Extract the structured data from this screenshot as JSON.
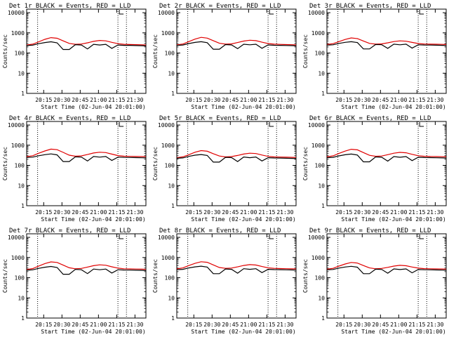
{
  "figure": {
    "ylabel": "Counts/sec",
    "xlabel": "Start Time (02-Jun-04 20:01:00)",
    "colors": {
      "events": "#000000",
      "lld": "#e00000",
      "axis": "#000000"
    }
  },
  "chart_data": [
    {
      "type": "line",
      "title": "Det 1r BLACK = Events, RED = LLD",
      "xlabel": "Start Time (02-Jun-04 20:01:00)",
      "ylabel": "Counts/sec",
      "y_scale": "log",
      "ylim": [
        1,
        15000
      ],
      "xlim": [
        "20:01",
        "21:39"
      ],
      "x_ticks": [
        "20:15",
        "20:30",
        "20:45",
        "21:00",
        "21:15",
        "21:30"
      ],
      "y_ticks": [
        "1",
        "10",
        "100",
        "1000",
        "10000"
      ],
      "vlines": [
        "20:10",
        "21:16",
        "21:23"
      ],
      "x": [
        "20:01",
        "20:06",
        "20:11",
        "20:16",
        "20:21",
        "20:26",
        "20:31",
        "20:36",
        "20:41",
        "20:46",
        "20:51",
        "20:56",
        "21:01",
        "21:06",
        "21:11",
        "21:16",
        "21:21",
        "21:26",
        "21:31",
        "21:36",
        "21:39"
      ],
      "series": [
        {
          "name": "LLD",
          "color": "#e00000",
          "values": [
            250,
            275,
            360,
            480,
            580,
            540,
            400,
            300,
            270,
            280,
            320,
            380,
            420,
            400,
            340,
            290,
            270,
            265,
            260,
            255,
            250
          ]
        },
        {
          "name": "Events",
          "color": "#000000",
          "values": [
            235,
            245,
            290,
            330,
            360,
            320,
            150,
            150,
            260,
            250,
            160,
            270,
            250,
            270,
            170,
            250,
            240,
            240,
            235,
            230,
            225
          ]
        }
      ]
    },
    {
      "type": "line",
      "title": "Det 2r BLACK = Events, RED = LLD",
      "xlabel": "Start Time (02-Jun-04 20:01:00)",
      "ylabel": "Counts/sec",
      "y_scale": "log",
      "ylim": [
        1,
        15000
      ],
      "xlim": [
        "20:01",
        "21:39"
      ],
      "x_ticks": [
        "20:15",
        "20:30",
        "20:45",
        "21:00",
        "21:15",
        "21:30"
      ],
      "y_ticks": [
        "1",
        "10",
        "100",
        "1000",
        "10000"
      ],
      "vlines": [
        "20:10",
        "21:16",
        "21:23"
      ],
      "x": [
        "20:01",
        "20:06",
        "20:11",
        "20:16",
        "20:21",
        "20:26",
        "20:31",
        "20:36",
        "20:41",
        "20:46",
        "20:51",
        "20:56",
        "21:01",
        "21:06",
        "21:11",
        "21:16",
        "21:21",
        "21:26",
        "21:31",
        "21:36",
        "21:39"
      ],
      "series": [
        {
          "name": "LLD",
          "color": "#e00000",
          "values": [
            255,
            280,
            370,
            490,
            600,
            550,
            410,
            305,
            275,
            285,
            330,
            390,
            430,
            410,
            345,
            295,
            275,
            268,
            262,
            258,
            252
          ]
        },
        {
          "name": "Events",
          "color": "#000000",
          "values": [
            240,
            250,
            295,
            335,
            365,
            325,
            155,
            155,
            262,
            252,
            165,
            272,
            255,
            272,
            172,
            252,
            242,
            240,
            236,
            232,
            228
          ]
        }
      ]
    },
    {
      "type": "line",
      "title": "Det 3r BLACK = Events, RED = LLD",
      "xlabel": "Start Time (02-Jun-04 20:01:00)",
      "ylabel": "Counts/sec",
      "y_scale": "log",
      "ylim": [
        1,
        15000
      ],
      "xlim": [
        "20:01",
        "21:39"
      ],
      "x_ticks": [
        "20:15",
        "20:30",
        "20:45",
        "21:00",
        "21:15",
        "21:30"
      ],
      "y_ticks": [
        "1",
        "10",
        "100",
        "1000",
        "10000"
      ],
      "vlines": [
        "20:10",
        "21:16",
        "21:23"
      ],
      "x": [
        "20:01",
        "20:06",
        "20:11",
        "20:16",
        "20:21",
        "20:26",
        "20:31",
        "20:36",
        "20:41",
        "20:46",
        "20:51",
        "20:56",
        "21:01",
        "21:06",
        "21:11",
        "21:16",
        "21:21",
        "21:26",
        "21:31",
        "21:36",
        "21:39"
      ],
      "series": [
        {
          "name": "LLD",
          "color": "#e00000",
          "values": [
            265,
            290,
            370,
            470,
            560,
            520,
            395,
            300,
            275,
            285,
            320,
            370,
            400,
            385,
            335,
            295,
            280,
            275,
            272,
            268,
            265
          ]
        },
        {
          "name": "Events",
          "color": "#000000",
          "values": [
            245,
            255,
            300,
            340,
            365,
            330,
            160,
            160,
            265,
            258,
            170,
            275,
            255,
            275,
            175,
            255,
            250,
            248,
            244,
            240,
            236
          ]
        }
      ]
    },
    {
      "type": "line",
      "title": "Det 4r BLACK = Events, RED = LLD",
      "xlabel": "Start Time (02-Jun-04 20:01:00)",
      "ylabel": "Counts/sec",
      "y_scale": "log",
      "ylim": [
        1,
        15000
      ],
      "xlim": [
        "20:01",
        "21:39"
      ],
      "x_ticks": [
        "20:15",
        "20:30",
        "20:45",
        "21:00",
        "21:15",
        "21:30"
      ],
      "y_ticks": [
        "1",
        "10",
        "100",
        "1000",
        "10000"
      ],
      "vlines": [
        "20:10",
        "21:16",
        "21:23"
      ],
      "x": [
        "20:01",
        "20:06",
        "20:11",
        "20:16",
        "20:21",
        "20:26",
        "20:31",
        "20:36",
        "20:41",
        "20:46",
        "20:51",
        "20:56",
        "21:01",
        "21:06",
        "21:11",
        "21:16",
        "21:21",
        "21:26",
        "21:31",
        "21:36",
        "21:39"
      ],
      "series": [
        {
          "name": "LLD",
          "color": "#e00000",
          "values": [
            270,
            300,
            400,
            520,
            640,
            600,
            440,
            320,
            285,
            295,
            345,
            410,
            450,
            430,
            360,
            305,
            285,
            280,
            275,
            272,
            268
          ]
        },
        {
          "name": "Events",
          "color": "#000000",
          "values": [
            245,
            255,
            300,
            340,
            370,
            330,
            155,
            155,
            265,
            255,
            165,
            275,
            255,
            275,
            175,
            255,
            248,
            246,
            242,
            238,
            234
          ]
        }
      ]
    },
    {
      "type": "line",
      "title": "Det 5r BLACK = Events, RED = LLD",
      "xlabel": "Start Time (02-Jun-04 20:01:00)",
      "ylabel": "Counts/sec",
      "y_scale": "log",
      "ylim": [
        1,
        15000
      ],
      "xlim": [
        "20:01",
        "21:39"
      ],
      "x_ticks": [
        "20:15",
        "20:30",
        "20:45",
        "21:00",
        "21:15",
        "21:30"
      ],
      "y_ticks": [
        "1",
        "10",
        "100",
        "1000",
        "10000"
      ],
      "vlines": [
        "20:10",
        "21:16",
        "21:23"
      ],
      "x": [
        "20:01",
        "20:06",
        "20:11",
        "20:16",
        "20:21",
        "20:26",
        "20:31",
        "20:36",
        "20:41",
        "20:46",
        "20:51",
        "20:56",
        "21:01",
        "21:06",
        "21:11",
        "21:16",
        "21:21",
        "21:26",
        "21:31",
        "21:36",
        "21:39"
      ],
      "series": [
        {
          "name": "LLD",
          "color": "#e00000",
          "values": [
            240,
            265,
            340,
            450,
            540,
            500,
            380,
            290,
            262,
            272,
            310,
            365,
            400,
            385,
            325,
            280,
            262,
            258,
            254,
            250,
            245
          ]
        },
        {
          "name": "Events",
          "color": "#000000",
          "values": [
            225,
            235,
            280,
            320,
            345,
            310,
            145,
            145,
            250,
            242,
            155,
            260,
            240,
            260,
            165,
            240,
            232,
            230,
            226,
            222,
            218
          ]
        }
      ]
    },
    {
      "type": "line",
      "title": "Det 6r BLACK = Events, RED = LLD",
      "xlabel": "Start Time (02-Jun-04 20:01:00)",
      "ylabel": "Counts/sec",
      "y_scale": "log",
      "ylim": [
        1,
        15000
      ],
      "xlim": [
        "20:01",
        "21:39"
      ],
      "x_ticks": [
        "20:15",
        "20:30",
        "20:45",
        "21:00",
        "21:15",
        "21:30"
      ],
      "y_ticks": [
        "1",
        "10",
        "100",
        "1000",
        "10000"
      ],
      "vlines": [
        "20:10",
        "21:16",
        "21:23"
      ],
      "x": [
        "20:01",
        "20:06",
        "20:11",
        "20:16",
        "20:21",
        "20:26",
        "20:31",
        "20:36",
        "20:41",
        "20:46",
        "20:51",
        "20:56",
        "21:01",
        "21:06",
        "21:11",
        "21:16",
        "21:21",
        "21:26",
        "21:31",
        "21:36",
        "21:39"
      ],
      "series": [
        {
          "name": "LLD",
          "color": "#e00000",
          "values": [
            265,
            295,
            395,
            510,
            630,
            590,
            430,
            315,
            282,
            292,
            340,
            400,
            440,
            420,
            352,
            300,
            282,
            276,
            272,
            268,
            264
          ]
        },
        {
          "name": "Events",
          "color": "#000000",
          "values": [
            240,
            250,
            295,
            335,
            365,
            325,
            150,
            150,
            262,
            252,
            162,
            272,
            252,
            272,
            172,
            252,
            244,
            242,
            238,
            234,
            230
          ]
        }
      ]
    },
    {
      "type": "line",
      "title": "Det 7r BLACK = Events, RED = LLD",
      "xlabel": "Start Time (02-Jun-04 20:01:00)",
      "ylabel": "Counts/sec",
      "y_scale": "log",
      "ylim": [
        1,
        15000
      ],
      "xlim": [
        "20:01",
        "21:39"
      ],
      "x_ticks": [
        "20:15",
        "20:30",
        "20:45",
        "21:00",
        "21:15",
        "21:30"
      ],
      "y_ticks": [
        "1",
        "10",
        "100",
        "1000",
        "10000"
      ],
      "vlines": [
        "20:10",
        "21:16",
        "21:23"
      ],
      "x": [
        "20:01",
        "20:06",
        "20:11",
        "20:16",
        "20:21",
        "20:26",
        "20:31",
        "20:36",
        "20:41",
        "20:46",
        "20:51",
        "20:56",
        "21:01",
        "21:06",
        "21:11",
        "21:16",
        "21:21",
        "21:26",
        "21:31",
        "21:36",
        "21:39"
      ],
      "series": [
        {
          "name": "LLD",
          "color": "#e00000",
          "values": [
            255,
            285,
            380,
            500,
            610,
            570,
            420,
            310,
            278,
            288,
            335,
            395,
            435,
            415,
            348,
            298,
            278,
            272,
            268,
            264,
            258
          ]
        },
        {
          "name": "Events",
          "color": "#000000",
          "values": [
            235,
            245,
            290,
            330,
            360,
            320,
            148,
            148,
            258,
            248,
            160,
            268,
            248,
            268,
            170,
            248,
            240,
            238,
            234,
            230,
            226
          ]
        }
      ]
    },
    {
      "type": "line",
      "title": "Det 8r BLACK = Events, RED = LLD",
      "xlabel": "Start Time (02-Jun-04 20:01:00)",
      "ylabel": "Counts/sec",
      "y_scale": "log",
      "ylim": [
        1,
        15000
      ],
      "xlim": [
        "20:01",
        "21:39"
      ],
      "x_ticks": [
        "20:15",
        "20:30",
        "20:45",
        "21:00",
        "21:15",
        "21:30"
      ],
      "y_ticks": [
        "1",
        "10",
        "100",
        "1000",
        "10000"
      ],
      "vlines": [
        "20:10",
        "21:16",
        "21:23"
      ],
      "x": [
        "20:01",
        "20:06",
        "20:11",
        "20:16",
        "20:21",
        "20:26",
        "20:31",
        "20:36",
        "20:41",
        "20:46",
        "20:51",
        "20:56",
        "21:01",
        "21:06",
        "21:11",
        "21:16",
        "21:21",
        "21:26",
        "21:31",
        "21:36",
        "21:39"
      ],
      "series": [
        {
          "name": "LLD",
          "color": "#e00000",
          "values": [
            275,
            305,
            400,
            515,
            620,
            580,
            430,
            320,
            290,
            300,
            345,
            405,
            445,
            425,
            358,
            308,
            290,
            284,
            280,
            276,
            272
          ]
        },
        {
          "name": "Events",
          "color": "#000000",
          "values": [
            250,
            260,
            305,
            345,
            372,
            335,
            158,
            158,
            270,
            260,
            168,
            280,
            260,
            280,
            178,
            260,
            252,
            250,
            246,
            242,
            238
          ]
        }
      ]
    },
    {
      "type": "line",
      "title": "Det 9r BLACK = Events, RED = LLD",
      "xlabel": "Start Time (02-Jun-04 20:01:00)",
      "ylabel": "Counts/sec",
      "y_scale": "log",
      "ylim": [
        1,
        15000
      ],
      "xlim": [
        "20:01",
        "21:39"
      ],
      "x_ticks": [
        "20:15",
        "20:30",
        "20:45",
        "21:00",
        "21:15",
        "21:30"
      ],
      "y_ticks": [
        "1",
        "10",
        "100",
        "1000",
        "10000"
      ],
      "vlines": [
        "20:10",
        "21:16",
        "21:23"
      ],
      "x": [
        "20:01",
        "20:06",
        "20:11",
        "20:16",
        "20:21",
        "20:26",
        "20:31",
        "20:36",
        "20:41",
        "20:46",
        "20:51",
        "20:56",
        "21:01",
        "21:06",
        "21:11",
        "21:16",
        "21:21",
        "21:26",
        "21:31",
        "21:36",
        "21:39"
      ],
      "series": [
        {
          "name": "LLD",
          "color": "#e00000",
          "values": [
            265,
            290,
            375,
            480,
            570,
            530,
            400,
            305,
            278,
            288,
            325,
            375,
            410,
            392,
            340,
            298,
            282,
            278,
            274,
            270,
            266
          ]
        },
        {
          "name": "Events",
          "color": "#000000",
          "values": [
            245,
            255,
            300,
            340,
            368,
            330,
            158,
            158,
            265,
            256,
            168,
            274,
            254,
            274,
            174,
            254,
            248,
            246,
            242,
            238,
            234
          ]
        }
      ]
    }
  ]
}
